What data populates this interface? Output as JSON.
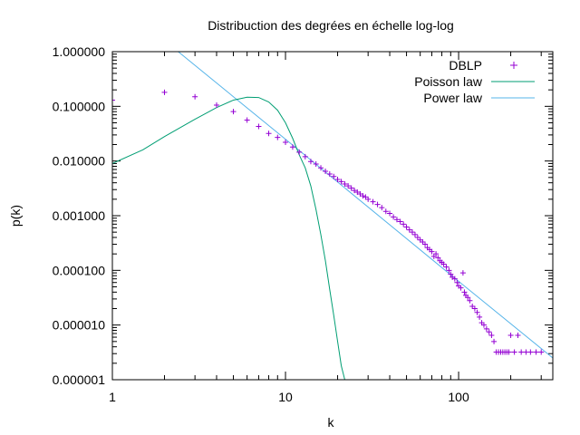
{
  "chart_data": {
    "type": "scatter",
    "title": "Distribuction des degrées en échelle log-log",
    "xlabel": "k",
    "ylabel": "p(k)",
    "xscale": "log",
    "yscale": "log",
    "xlim": [
      1,
      350
    ],
    "ylim": [
      1e-06,
      1
    ],
    "grid": false,
    "legend_position": "top-right",
    "x_ticks": [
      {
        "value": 1,
        "label": "1"
      },
      {
        "value": 10,
        "label": "10"
      },
      {
        "value": 100,
        "label": "100"
      }
    ],
    "y_ticks": [
      {
        "value": 1,
        "label": "1.000000"
      },
      {
        "value": 0.1,
        "label": "0.100000"
      },
      {
        "value": 0.01,
        "label": "0.010000"
      },
      {
        "value": 0.001,
        "label": "0.001000"
      },
      {
        "value": 0.0001,
        "label": "0.000100"
      },
      {
        "value": 1e-05,
        "label": "0.000010"
      },
      {
        "value": 1e-06,
        "label": "0.000001"
      }
    ],
    "series": [
      {
        "name": "DBLP",
        "kind": "points",
        "color": "#9400d3",
        "points": [
          [
            1,
            0.13
          ],
          [
            2,
            0.18
          ],
          [
            3,
            0.15
          ],
          [
            4,
            0.105
          ],
          [
            5,
            0.08
          ],
          [
            6,
            0.056
          ],
          [
            7,
            0.043
          ],
          [
            8,
            0.032
          ],
          [
            9,
            0.027
          ],
          [
            10,
            0.022
          ],
          [
            11,
            0.018
          ],
          [
            12,
            0.0145
          ],
          [
            13,
            0.012
          ],
          [
            14,
            0.0098
          ],
          [
            15,
            0.0088
          ],
          [
            16,
            0.0075
          ],
          [
            17,
            0.0065
          ],
          [
            18,
            0.0058
          ],
          [
            19,
            0.0052
          ],
          [
            20,
            0.0046
          ],
          [
            21,
            0.0042
          ],
          [
            22,
            0.0038
          ],
          [
            23,
            0.0035
          ],
          [
            24,
            0.0032
          ],
          [
            25,
            0.0029
          ],
          [
            26,
            0.0027
          ],
          [
            27,
            0.0025
          ],
          [
            28,
            0.0023
          ],
          [
            29,
            0.0022
          ],
          [
            30,
            0.002
          ],
          [
            32,
            0.0018
          ],
          [
            34,
            0.0016
          ],
          [
            36,
            0.0014
          ],
          [
            38,
            0.0012
          ],
          [
            40,
            0.0011
          ],
          [
            42,
            0.00095
          ],
          [
            44,
            0.00085
          ],
          [
            46,
            0.00078
          ],
          [
            48,
            0.0007
          ],
          [
            50,
            0.00062
          ],
          [
            52,
            0.00055
          ],
          [
            54,
            0.0005
          ],
          [
            56,
            0.00045
          ],
          [
            58,
            0.0004
          ],
          [
            60,
            0.00036
          ],
          [
            62,
            0.00033
          ],
          [
            64,
            0.0003
          ],
          [
            66,
            0.00026
          ],
          [
            68,
            0.00024
          ],
          [
            70,
            0.00022
          ],
          [
            72,
            0.00018
          ],
          [
            74,
            0.0002
          ],
          [
            76,
            0.00017
          ],
          [
            78,
            0.00015
          ],
          [
            80,
            0.00014
          ],
          [
            82,
            0.00013
          ],
          [
            85,
            0.000115
          ],
          [
            88,
            0.0001
          ],
          [
            90,
            8.5e-05
          ],
          [
            92,
            7.5e-05
          ],
          [
            95,
            7e-05
          ],
          [
            98,
            6e-05
          ],
          [
            100,
            5.2e-05
          ],
          [
            103,
            4.8e-05
          ],
          [
            106,
            9e-05
          ],
          [
            108,
            4e-05
          ],
          [
            110,
            3.5e-05
          ],
          [
            113,
            3.2e-05
          ],
          [
            116,
            2.8e-05
          ],
          [
            120,
            2.2e-05
          ],
          [
            124,
            2e-05
          ],
          [
            128,
            1.7e-05
          ],
          [
            132,
            1.4e-05
          ],
          [
            136,
            1.1e-05
          ],
          [
            140,
            1e-05
          ],
          [
            145,
            8.5e-06
          ],
          [
            150,
            7.5e-06
          ],
          [
            155,
            6.5e-06
          ],
          [
            160,
            5e-06
          ],
          [
            165,
            3.2e-06
          ],
          [
            170,
            3.2e-06
          ],
          [
            175,
            3.2e-06
          ],
          [
            180,
            3.2e-06
          ],
          [
            185,
            3.2e-06
          ],
          [
            190,
            3.2e-06
          ],
          [
            195,
            3.2e-06
          ],
          [
            200,
            6.5e-06
          ],
          [
            210,
            3.2e-06
          ],
          [
            220,
            6.5e-06
          ],
          [
            230,
            3.2e-06
          ],
          [
            245,
            3.2e-06
          ],
          [
            260,
            3.2e-06
          ],
          [
            280,
            3.2e-06
          ],
          [
            300,
            3.2e-06
          ]
        ]
      },
      {
        "name": "Poisson law",
        "kind": "line",
        "color": "#009e73",
        "points": [
          [
            1,
            0.009
          ],
          [
            1.5,
            0.016
          ],
          [
            2,
            0.028
          ],
          [
            3,
            0.058
          ],
          [
            4,
            0.095
          ],
          [
            5,
            0.13
          ],
          [
            6,
            0.147
          ],
          [
            7,
            0.145
          ],
          [
            8,
            0.12
          ],
          [
            9,
            0.085
          ],
          [
            10,
            0.05
          ],
          [
            11,
            0.026
          ],
          [
            12,
            0.013
          ],
          [
            13,
            0.0075
          ],
          [
            14,
            0.0035
          ],
          [
            15,
            0.0013
          ],
          [
            16,
            0.00045
          ],
          [
            17,
            0.00015
          ],
          [
            18,
            4.5e-05
          ],
          [
            19,
            1.5e-05
          ],
          [
            20,
            5e-06
          ],
          [
            21,
            1.8e-06
          ],
          [
            22,
            1e-06
          ]
        ]
      },
      {
        "name": "Power law",
        "kind": "line",
        "color": "#56b4e9",
        "points": [
          [
            2.4,
            1
          ],
          [
            10,
            0.025
          ],
          [
            100,
            6.3e-05
          ],
          [
            350,
            2.5e-06
          ]
        ]
      }
    ]
  }
}
